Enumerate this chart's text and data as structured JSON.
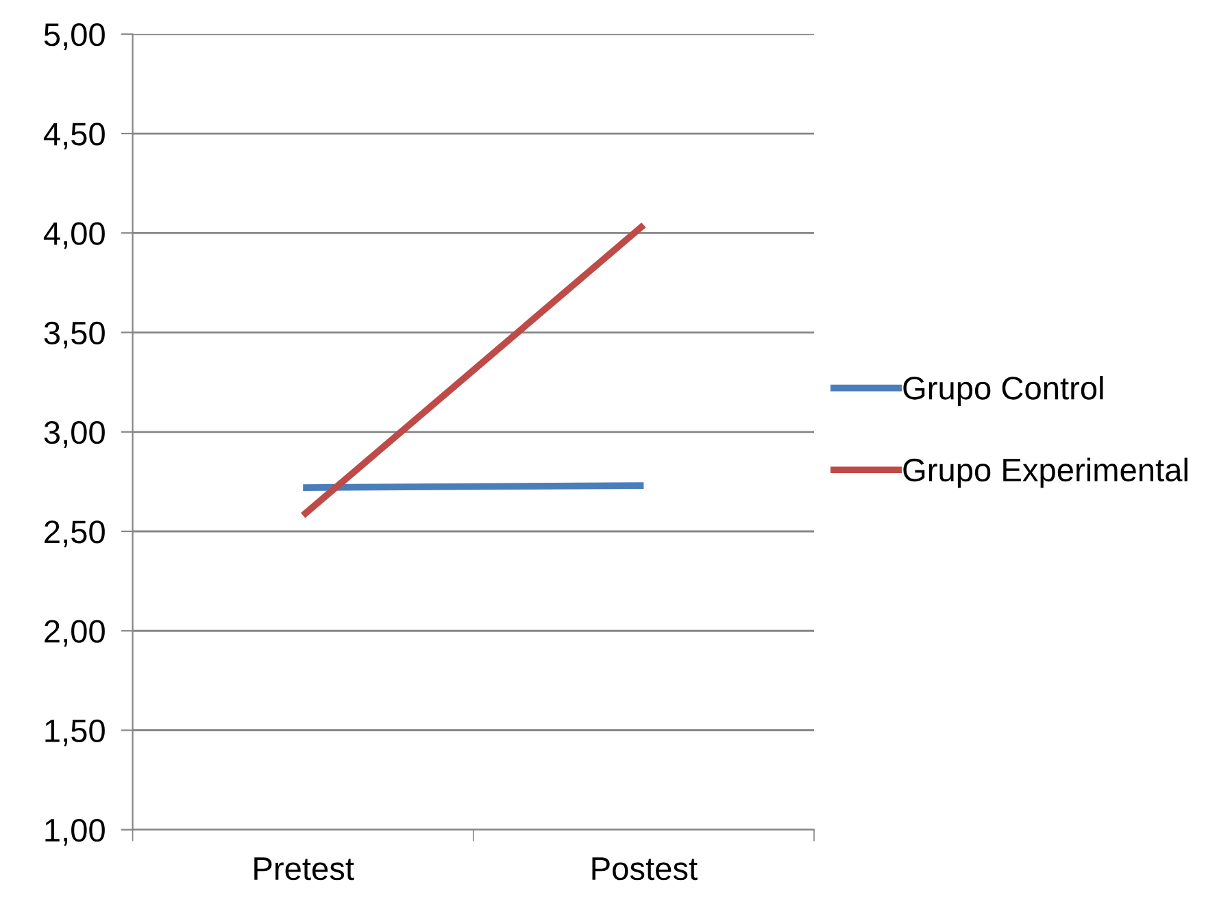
{
  "chart_data": {
    "type": "line",
    "categories": [
      "Pretest",
      "Postest"
    ],
    "series": [
      {
        "name": "Grupo Control",
        "color": "#4a7ebb",
        "values": [
          2.72,
          2.73
        ]
      },
      {
        "name": "Grupo Experimental",
        "color": "#be4b48",
        "values": [
          2.58,
          4.04
        ]
      }
    ],
    "ylim": [
      1.0,
      5.0
    ],
    "yticks": [
      {
        "value": 1.0,
        "label": "1,00"
      },
      {
        "value": 1.5,
        "label": "1,50"
      },
      {
        "value": 2.0,
        "label": "2,00"
      },
      {
        "value": 2.5,
        "label": "2,50"
      },
      {
        "value": 3.0,
        "label": "3,00"
      },
      {
        "value": 3.5,
        "label": "3,50"
      },
      {
        "value": 4.0,
        "label": "4,00"
      },
      {
        "value": 4.5,
        "label": "4,50"
      },
      {
        "value": 5.0,
        "label": "5,00"
      }
    ],
    "grid": "y",
    "legend": "right",
    "marker": "none",
    "line_style": "solid"
  }
}
